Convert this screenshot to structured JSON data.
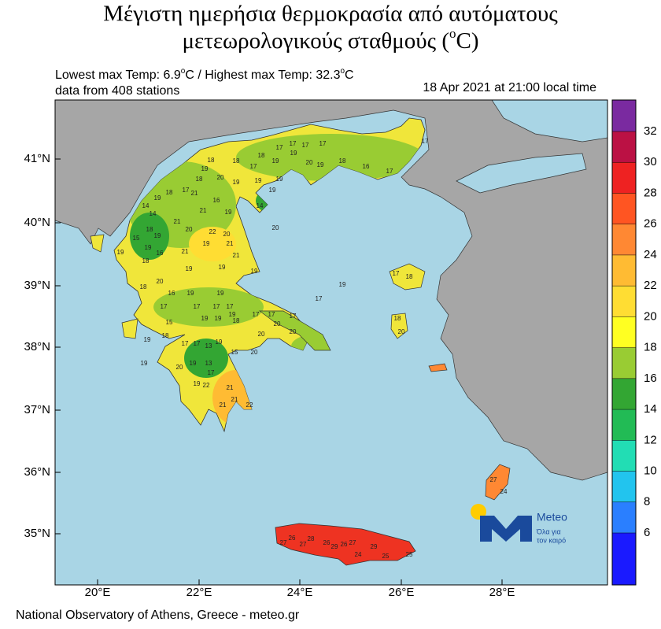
{
  "title": {
    "line1": "Μέγιστη ημερήσια θερμοκρασία από αυτόματους",
    "line2": [
      "μετεωρολογικούς σταθμούς (",
      "o",
      "C)"
    ]
  },
  "subtitle": {
    "range": [
      "Lowest max Temp: 6.9",
      "o",
      "C / Highest max Temp: 32.3",
      "o",
      "C"
    ],
    "stations_count": "data from 408 stations",
    "time": "18 Apr 2021 at 21:00 local time"
  },
  "axes": {
    "lon_labels": [
      "20°E",
      "22°E",
      "24°E",
      "26°E",
      "28°E"
    ],
    "lat_labels": [
      "41°N",
      "40°N",
      "39°N",
      "38°N",
      "37°N",
      "36°N",
      "35°N"
    ]
  },
  "colorbar": {
    "ticks": [
      6,
      8,
      10,
      12,
      14,
      16,
      18,
      20,
      22,
      24,
      26,
      28,
      30,
      32
    ],
    "colors": [
      "#1a1aff",
      "#2a7fff",
      "#22c4ee",
      "#22ddb4",
      "#22bb55",
      "#33a633",
      "#99cc33",
      "#ffff22",
      "#ffdd33",
      "#ffbb33",
      "#ff8833",
      "#ff5522",
      "#ee2222",
      "#bb1144",
      "#7a2aa0"
    ]
  },
  "logo": {
    "name": "Meteo",
    "tagline1": "Όλα για",
    "tagline2": "τον καιρό"
  },
  "stations": [
    18,
    18,
    17,
    18,
    19,
    17,
    17,
    19,
    17,
    17,
    20,
    19,
    18,
    16,
    17,
    17,
    19,
    18,
    20,
    19,
    19,
    19,
    19,
    17,
    18,
    19,
    14,
    14,
    21,
    16,
    21,
    19,
    14,
    20,
    21,
    20,
    22,
    20,
    18,
    15,
    19,
    19,
    16,
    21,
    19,
    21,
    19,
    18,
    19,
    19,
    21,
    19,
    20,
    18,
    16,
    19,
    19,
    17,
    17,
    17,
    17,
    19,
    19,
    19,
    18,
    15,
    17,
    17,
    17,
    20,
    20,
    20,
    18,
    19,
    17,
    17,
    13,
    15,
    20,
    19,
    13,
    17,
    19,
    20,
    19,
    22,
    19,
    21,
    21,
    21,
    22,
    17,
    18,
    18,
    20,
    19,
    17,
    26,
    28,
    26,
    26,
    27,
    29,
    29,
    27,
    27,
    24,
    25,
    25,
    27,
    24
  ],
  "footer": "National Observatory of Athens, Greece - meteo.gr"
}
